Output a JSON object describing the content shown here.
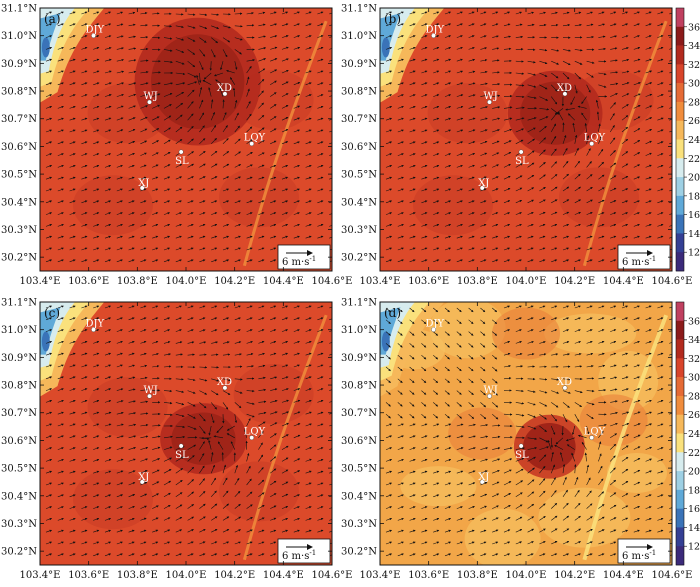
{
  "panels": [
    {
      "id": "a",
      "label": "(a)",
      "hot_core": [
        0.54,
        0.28,
        0.16,
        0.18
      ],
      "cool_band": 0.0
    },
    {
      "id": "b",
      "label": "(b)",
      "hot_core": [
        0.6,
        0.4,
        0.12,
        0.12
      ],
      "cool_band": 0.0
    },
    {
      "id": "c",
      "label": "(c)",
      "hot_core": [
        0.56,
        0.52,
        0.11,
        0.1
      ],
      "cool_band": 0.0
    },
    {
      "id": "d",
      "label": "(d)",
      "hot_core": [
        0.58,
        0.55,
        0.09,
        0.09
      ],
      "cool_band": 1.0
    }
  ],
  "axes": {
    "x_ticks": [
      "103.4°E",
      "103.6°E",
      "103.8°E",
      "104.0°E",
      "104.2°E",
      "104.4°E",
      "104.6°E"
    ],
    "y_ticks": [
      "31.1°N",
      "31.0°N",
      "30.9°N",
      "30.8°N",
      "30.7°N",
      "30.6°N",
      "30.5°N",
      "30.4°N",
      "30.3°N",
      "30.2°N"
    ],
    "x_range": [
      103.4,
      104.6
    ],
    "y_range": [
      30.15,
      31.1
    ]
  },
  "stations": [
    {
      "name": "DJY",
      "lon": 103.62,
      "lat": 31.0
    },
    {
      "name": "XD",
      "lon": 104.16,
      "lat": 30.79
    },
    {
      "name": "WJ",
      "lon": 103.85,
      "lat": 30.76
    },
    {
      "name": "LQY",
      "lon": 104.27,
      "lat": 30.61
    },
    {
      "name": "SL",
      "lon": 103.98,
      "lat": 30.58
    },
    {
      "name": "XJ",
      "lon": 103.82,
      "lat": 30.45
    }
  ],
  "reference_vector": {
    "label": "6 m·s",
    "exponent": "-1"
  },
  "colorbar": {
    "ticks": [
      "36",
      "34",
      "32",
      "30",
      "28",
      "26",
      "24",
      "22",
      "20",
      "18",
      "16",
      "14",
      "12"
    ],
    "colors": [
      "#c04060",
      "#8b1a1a",
      "#b22a1e",
      "#d8442a",
      "#e56a35",
      "#f08c3c",
      "#f6b85a",
      "#fae17c",
      "#d7ecee",
      "#9ed0e4",
      "#5fa9d8",
      "#3a73b8",
      "#343f94",
      "#3b2a7a"
    ]
  }
}
